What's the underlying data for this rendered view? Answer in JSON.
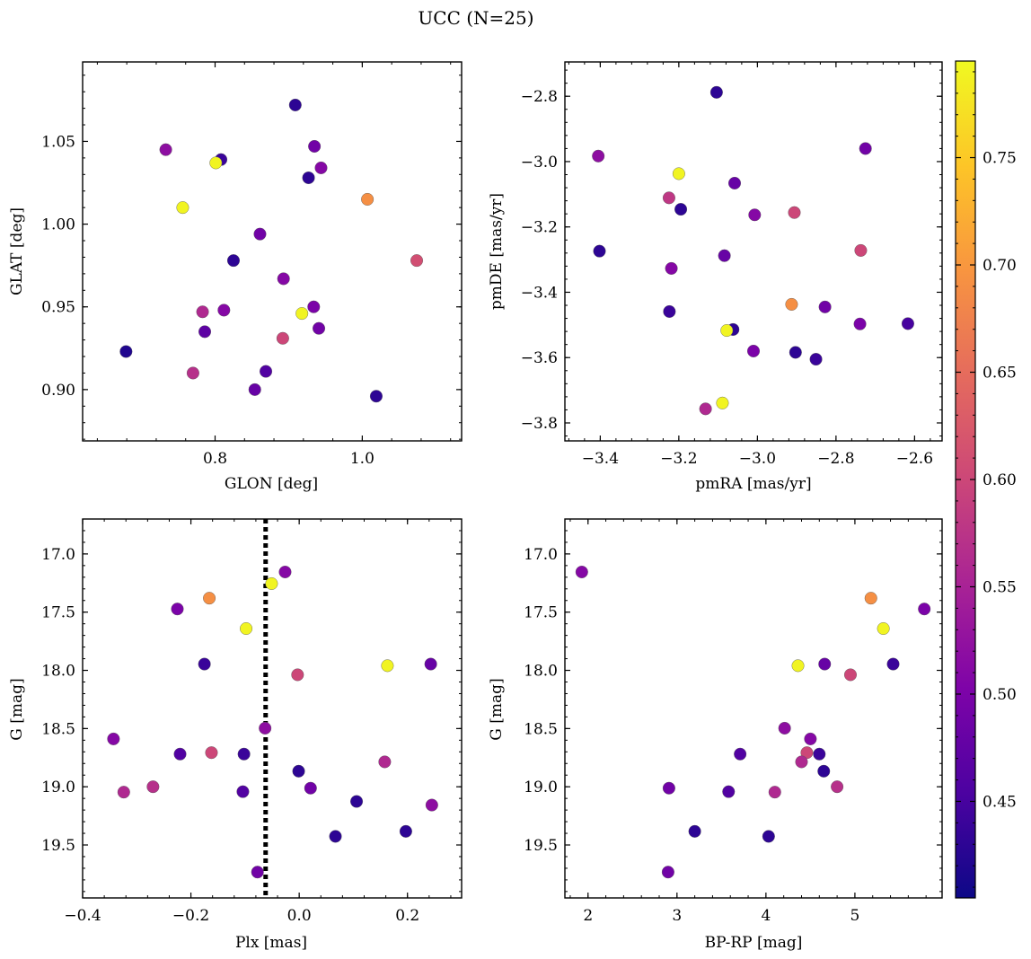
{
  "title": "UCC (N=25)",
  "colormap": {
    "name": "plasma",
    "vmin": 0.405,
    "vmax": 0.795,
    "ticks": [
      "0.45",
      "0.50",
      "0.55",
      "0.60",
      "0.65",
      "0.70",
      "0.75"
    ],
    "tick_values": [
      0.45,
      0.5,
      0.55,
      0.6,
      0.65,
      0.7,
      0.75
    ]
  },
  "chart_data": [
    {
      "type": "scatter",
      "id": "glon-glat",
      "xlabel": "GLON [deg]",
      "ylabel": "GLAT [deg]",
      "xlim": [
        0.62,
        1.135
      ],
      "ylim": [
        0.869,
        1.098
      ],
      "xticks": [
        "0.8",
        "1.0"
      ],
      "xtick_values": [
        0.8,
        1.0
      ],
      "yticks": [
        "0.90",
        "0.95",
        "1.00",
        "1.05"
      ],
      "ytick_values": [
        0.9,
        0.95,
        1.0,
        1.05
      ],
      "points": [
        {
          "x": 0.909,
          "y": 1.072,
          "c": 0.43
        },
        {
          "x": 0.733,
          "y": 1.045,
          "c": 0.52
        },
        {
          "x": 0.808,
          "y": 1.039,
          "c": 0.44
        },
        {
          "x": 0.801,
          "y": 1.037,
          "c": 0.79
        },
        {
          "x": 0.935,
          "y": 1.047,
          "c": 0.49
        },
        {
          "x": 0.944,
          "y": 1.034,
          "c": 0.51
        },
        {
          "x": 0.927,
          "y": 1.028,
          "c": 0.43
        },
        {
          "x": 1.007,
          "y": 1.015,
          "c": 0.69
        },
        {
          "x": 0.756,
          "y": 1.01,
          "c": 0.79
        },
        {
          "x": 0.861,
          "y": 0.994,
          "c": 0.49
        },
        {
          "x": 0.825,
          "y": 0.978,
          "c": 0.43
        },
        {
          "x": 1.074,
          "y": 0.978,
          "c": 0.61
        },
        {
          "x": 0.893,
          "y": 0.967,
          "c": 0.51
        },
        {
          "x": 0.934,
          "y": 0.95,
          "c": 0.5
        },
        {
          "x": 0.783,
          "y": 0.947,
          "c": 0.56
        },
        {
          "x": 0.812,
          "y": 0.948,
          "c": 0.51
        },
        {
          "x": 0.918,
          "y": 0.946,
          "c": 0.79
        },
        {
          "x": 0.786,
          "y": 0.935,
          "c": 0.47
        },
        {
          "x": 0.941,
          "y": 0.937,
          "c": 0.49
        },
        {
          "x": 0.892,
          "y": 0.931,
          "c": 0.6
        },
        {
          "x": 0.679,
          "y": 0.923,
          "c": 0.42
        },
        {
          "x": 0.77,
          "y": 0.91,
          "c": 0.57
        },
        {
          "x": 0.869,
          "y": 0.911,
          "c": 0.46
        },
        {
          "x": 0.854,
          "y": 0.9,
          "c": 0.48
        },
        {
          "x": 1.019,
          "y": 0.896,
          "c": 0.43
        }
      ]
    },
    {
      "type": "scatter",
      "id": "pmra-pmde",
      "xlabel": "pmRA [mas/yr]",
      "ylabel": "pmDE [mas/yr]",
      "xlim": [
        -3.49,
        -2.53
      ],
      "ylim": [
        -3.855,
        -2.695
      ],
      "xticks": [
        "−3.4",
        "−3.2",
        "−3.0",
        "−2.8",
        "−2.6"
      ],
      "xtick_values": [
        -3.4,
        -3.2,
        -3.0,
        -2.8,
        -2.6
      ],
      "yticks": [
        "−3.8",
        "−3.6",
        "−3.4",
        "−3.2",
        "−3.0",
        "−2.8"
      ],
      "ytick_values": [
        -3.8,
        -3.6,
        -3.4,
        -3.2,
        -3.0,
        -2.8
      ],
      "points": [
        {
          "x": -3.104,
          "y": -2.788,
          "c": 0.43
        },
        {
          "x": -2.725,
          "y": -2.96,
          "c": 0.49
        },
        {
          "x": -3.405,
          "y": -2.983,
          "c": 0.52
        },
        {
          "x": -3.2,
          "y": -3.037,
          "c": 0.79
        },
        {
          "x": -3.058,
          "y": -3.066,
          "c": 0.48
        },
        {
          "x": -3.225,
          "y": -3.111,
          "c": 0.58
        },
        {
          "x": -3.195,
          "y": -3.146,
          "c": 0.43
        },
        {
          "x": -3.007,
          "y": -3.163,
          "c": 0.51
        },
        {
          "x": -2.906,
          "y": -3.156,
          "c": 0.6
        },
        {
          "x": -3.402,
          "y": -3.274,
          "c": 0.43
        },
        {
          "x": -2.737,
          "y": -3.272,
          "c": 0.6
        },
        {
          "x": -3.084,
          "y": -3.288,
          "c": 0.48
        },
        {
          "x": -3.219,
          "y": -3.327,
          "c": 0.51
        },
        {
          "x": -2.913,
          "y": -3.437,
          "c": 0.69
        },
        {
          "x": -2.828,
          "y": -3.445,
          "c": 0.49
        },
        {
          "x": -3.224,
          "y": -3.459,
          "c": 0.44
        },
        {
          "x": -2.739,
          "y": -3.497,
          "c": 0.5
        },
        {
          "x": -2.617,
          "y": -3.496,
          "c": 0.45
        },
        {
          "x": -3.062,
          "y": -3.514,
          "c": 0.43
        },
        {
          "x": -3.078,
          "y": -3.517,
          "c": 0.79
        },
        {
          "x": -3.01,
          "y": -3.58,
          "c": 0.5
        },
        {
          "x": -2.903,
          "y": -3.584,
          "c": 0.43
        },
        {
          "x": -2.851,
          "y": -3.605,
          "c": 0.44
        },
        {
          "x": -3.089,
          "y": -3.739,
          "c": 0.79
        },
        {
          "x": -3.132,
          "y": -3.757,
          "c": 0.56
        }
      ]
    },
    {
      "type": "scatter",
      "id": "plx-g",
      "xlabel": "Plx [mas]",
      "ylabel": "G [mag]",
      "xlim": [
        -0.4,
        0.3
      ],
      "ylim": [
        19.955,
        16.7
      ],
      "invert_y": true,
      "vline": {
        "x": -0.062,
        "style": "dotted",
        "color": "#000000"
      },
      "xticks": [
        "−0.4",
        "−0.2",
        "0.0",
        "0.2"
      ],
      "xtick_values": [
        -0.4,
        -0.2,
        0.0,
        0.2
      ],
      "yticks": [
        "17.0",
        "17.5",
        "18.0",
        "18.5",
        "19.0",
        "19.5"
      ],
      "ytick_values": [
        17.0,
        17.5,
        18.0,
        18.5,
        19.0,
        19.5
      ],
      "points": [
        {
          "x": -0.026,
          "y": 17.155,
          "c": 0.51
        },
        {
          "x": -0.051,
          "y": 17.255,
          "c": 0.79
        },
        {
          "x": -0.166,
          "y": 17.38,
          "c": 0.69
        },
        {
          "x": -0.225,
          "y": 17.473,
          "c": 0.5
        },
        {
          "x": -0.098,
          "y": 17.641,
          "c": 0.79
        },
        {
          "x": -0.175,
          "y": 17.946,
          "c": 0.44
        },
        {
          "x": 0.163,
          "y": 17.96,
          "c": 0.79
        },
        {
          "x": 0.243,
          "y": 17.946,
          "c": 0.48
        },
        {
          "x": -0.003,
          "y": 18.038,
          "c": 0.6
        },
        {
          "x": -0.063,
          "y": 18.497,
          "c": 0.52
        },
        {
          "x": -0.343,
          "y": 18.589,
          "c": 0.51
        },
        {
          "x": -0.22,
          "y": 18.719,
          "c": 0.46
        },
        {
          "x": -0.162,
          "y": 18.707,
          "c": 0.6
        },
        {
          "x": -0.102,
          "y": 18.719,
          "c": 0.44
        },
        {
          "x": 0.158,
          "y": 18.786,
          "c": 0.56
        },
        {
          "x": -0.001,
          "y": 18.866,
          "c": 0.43
        },
        {
          "x": -0.27,
          "y": 19.0,
          "c": 0.57
        },
        {
          "x": -0.324,
          "y": 19.046,
          "c": 0.56
        },
        {
          "x": -0.104,
          "y": 19.042,
          "c": 0.46
        },
        {
          "x": 0.021,
          "y": 19.012,
          "c": 0.49
        },
        {
          "x": 0.106,
          "y": 19.126,
          "c": 0.43
        },
        {
          "x": 0.245,
          "y": 19.157,
          "c": 0.52
        },
        {
          "x": 0.197,
          "y": 19.383,
          "c": 0.43
        },
        {
          "x": 0.067,
          "y": 19.426,
          "c": 0.43
        },
        {
          "x": -0.077,
          "y": 19.733,
          "c": 0.49
        }
      ]
    },
    {
      "type": "scatter",
      "id": "bprp-g",
      "xlabel": "BP-RP [mag]",
      "ylabel": "G [mag]",
      "xlim": [
        1.74,
        5.98
      ],
      "ylim": [
        19.955,
        16.7
      ],
      "invert_y": true,
      "xticks": [
        "2",
        "3",
        "4",
        "5"
      ],
      "xtick_values": [
        2,
        3,
        4,
        5
      ],
      "yticks": [
        "17.0",
        "17.5",
        "18.0",
        "18.5",
        "19.0",
        "19.5"
      ],
      "ytick_values": [
        17.0,
        17.5,
        18.0,
        18.5,
        19.0,
        19.5
      ],
      "points": [
        {
          "x": 1.93,
          "y": 17.155,
          "c": 0.51
        },
        {
          "x": 5.18,
          "y": 17.38,
          "c": 0.69
        },
        {
          "x": 5.78,
          "y": 17.473,
          "c": 0.5
        },
        {
          "x": 5.32,
          "y": 17.641,
          "c": 0.79
        },
        {
          "x": 4.36,
          "y": 17.96,
          "c": 0.79
        },
        {
          "x": 4.66,
          "y": 17.946,
          "c": 0.48
        },
        {
          "x": 5.43,
          "y": 17.946,
          "c": 0.44
        },
        {
          "x": 4.95,
          "y": 18.038,
          "c": 0.6
        },
        {
          "x": 4.21,
          "y": 18.497,
          "c": 0.52
        },
        {
          "x": 4.5,
          "y": 18.589,
          "c": 0.51
        },
        {
          "x": 3.71,
          "y": 18.719,
          "c": 0.46
        },
        {
          "x": 4.46,
          "y": 18.707,
          "c": 0.6
        },
        {
          "x": 4.6,
          "y": 18.719,
          "c": 0.44
        },
        {
          "x": 4.4,
          "y": 18.786,
          "c": 0.56
        },
        {
          "x": 4.65,
          "y": 18.866,
          "c": 0.43
        },
        {
          "x": 4.8,
          "y": 19.0,
          "c": 0.57
        },
        {
          "x": 4.1,
          "y": 19.046,
          "c": 0.56
        },
        {
          "x": 3.58,
          "y": 19.042,
          "c": 0.46
        },
        {
          "x": 2.91,
          "y": 19.012,
          "c": 0.49
        },
        {
          "x": 3.2,
          "y": 19.383,
          "c": 0.43
        },
        {
          "x": 4.03,
          "y": 19.426,
          "c": 0.43
        },
        {
          "x": 2.9,
          "y": 19.733,
          "c": 0.49
        }
      ]
    }
  ]
}
